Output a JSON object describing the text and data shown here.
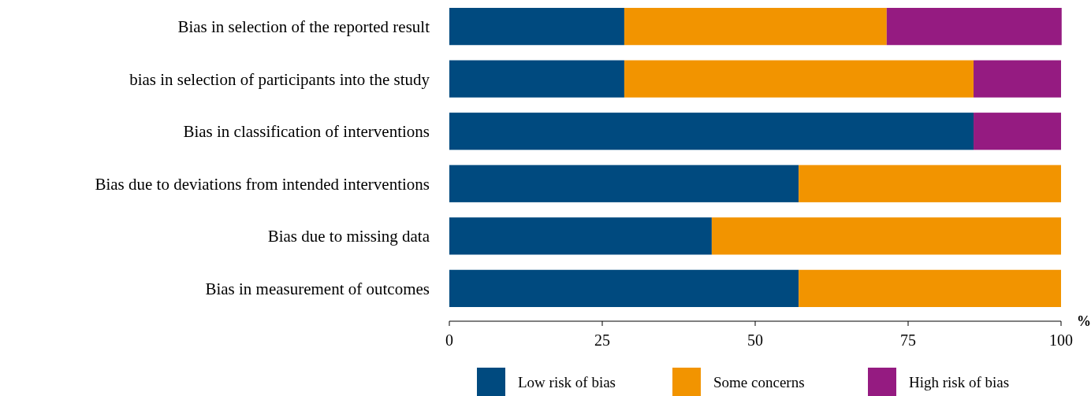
{
  "chart_data": {
    "type": "bar",
    "orientation": "horizontal",
    "stacked": true,
    "xlabel": "%",
    "categories": [
      "Bias in selection of the reported result",
      "bias in selection of participants into the study",
      "Bias in classification of interventions",
      "Bias due to deviations from intended interventions",
      "Bias due to missing data",
      "Bias in measurement of outcomes"
    ],
    "series": [
      {
        "name": "Low risk of bias",
        "color": "#004a7f",
        "values": [
          28.6,
          28.6,
          85.7,
          57.1,
          42.9,
          57.1
        ]
      },
      {
        "name": "Some concerns",
        "color": "#f29400",
        "values": [
          42.9,
          57.1,
          0,
          42.9,
          57.1,
          42.9
        ]
      },
      {
        "name": "High risk of bias",
        "color": "#951b81",
        "values": [
          28.6,
          14.3,
          14.3,
          0,
          0,
          0
        ]
      }
    ],
    "xlim": [
      0,
      100
    ],
    "xticks": [
      0,
      25,
      50,
      75,
      100
    ],
    "grid": false,
    "legend": "bottom"
  }
}
